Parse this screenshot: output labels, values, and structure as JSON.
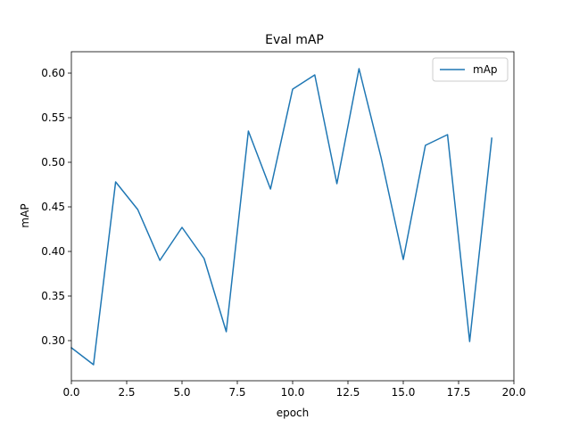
{
  "chart_data": {
    "type": "line",
    "title": "Eval mAP",
    "xlabel": "epoch",
    "ylabel": "mAP",
    "xlim": [
      0,
      20
    ],
    "ylim": [
      0.255,
      0.624
    ],
    "x_ticks": [
      0,
      2.5,
      5,
      7.5,
      10,
      12.5,
      15,
      17.5,
      20
    ],
    "x_tick_labels": [
      "0.0",
      "2.5",
      "5.0",
      "7.5",
      "10.0",
      "12.5",
      "15.0",
      "17.5",
      "20.0"
    ],
    "y_ticks": [
      0.3,
      0.35,
      0.4,
      0.45,
      0.5,
      0.55,
      0.6
    ],
    "y_tick_labels": [
      "0.30",
      "0.35",
      "0.40",
      "0.45",
      "0.50",
      "0.55",
      "0.60"
    ],
    "grid": false,
    "legend_position": "top-right",
    "series": [
      {
        "name": "mAp",
        "color": "#1f77b4",
        "x": [
          0,
          1,
          2,
          3,
          4,
          5,
          6,
          7,
          8,
          9,
          10,
          11,
          12,
          13,
          14,
          15,
          16,
          17,
          18,
          19
        ],
        "values": [
          0.292,
          0.273,
          0.478,
          0.447,
          0.39,
          0.427,
          0.392,
          0.31,
          0.535,
          0.47,
          0.582,
          0.598,
          0.476,
          0.605,
          0.505,
          0.391,
          0.519,
          0.531,
          0.299,
          0.527
        ]
      }
    ]
  }
}
